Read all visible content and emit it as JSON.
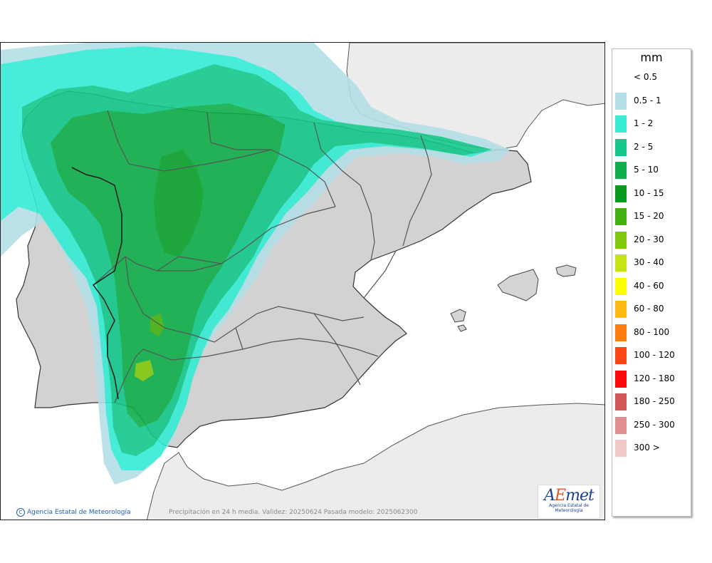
{
  "map": {
    "credit": "Agencia Estatal de Meteorología",
    "caption": "Precipitación en 24 h media. Validez: 20250624 Pasada modelo: 2025062300",
    "logo_text": "AEmet",
    "logo_sub": "Agencia Estatal de Meteorología"
  },
  "legend": {
    "title": "mm",
    "items": [
      {
        "label": "< 0.5",
        "color": "#ffffff"
      },
      {
        "label": "0.5 - 1",
        "color": "#b4dfe6"
      },
      {
        "label": "1 - 2",
        "color": "#34ecd4"
      },
      {
        "label": "2 - 5",
        "color": "#14c88a"
      },
      {
        "label": "5 - 10",
        "color": "#0fae4a"
      },
      {
        "label": "10 - 15",
        "color": "#0a9b1c"
      },
      {
        "label": "15 - 20",
        "color": "#44b112"
      },
      {
        "label": "20 - 30",
        "color": "#80c80e"
      },
      {
        "label": "30 - 40",
        "color": "#c6e316"
      },
      {
        "label": "40 - 60",
        "color": "#ffff00"
      },
      {
        "label": "60 - 80",
        "color": "#ffb814"
      },
      {
        "label": "80 - 100",
        "color": "#ff7e12"
      },
      {
        "label": "100 - 120",
        "color": "#ff4612"
      },
      {
        "label": "120 - 180",
        "color": "#ff0a0a"
      },
      {
        "label": "180 - 250",
        "color": "#d05858"
      },
      {
        "label": "250 - 300",
        "color": "#e09090"
      },
      {
        "label": "300 >",
        "color": "#f0c8c8"
      }
    ]
  }
}
